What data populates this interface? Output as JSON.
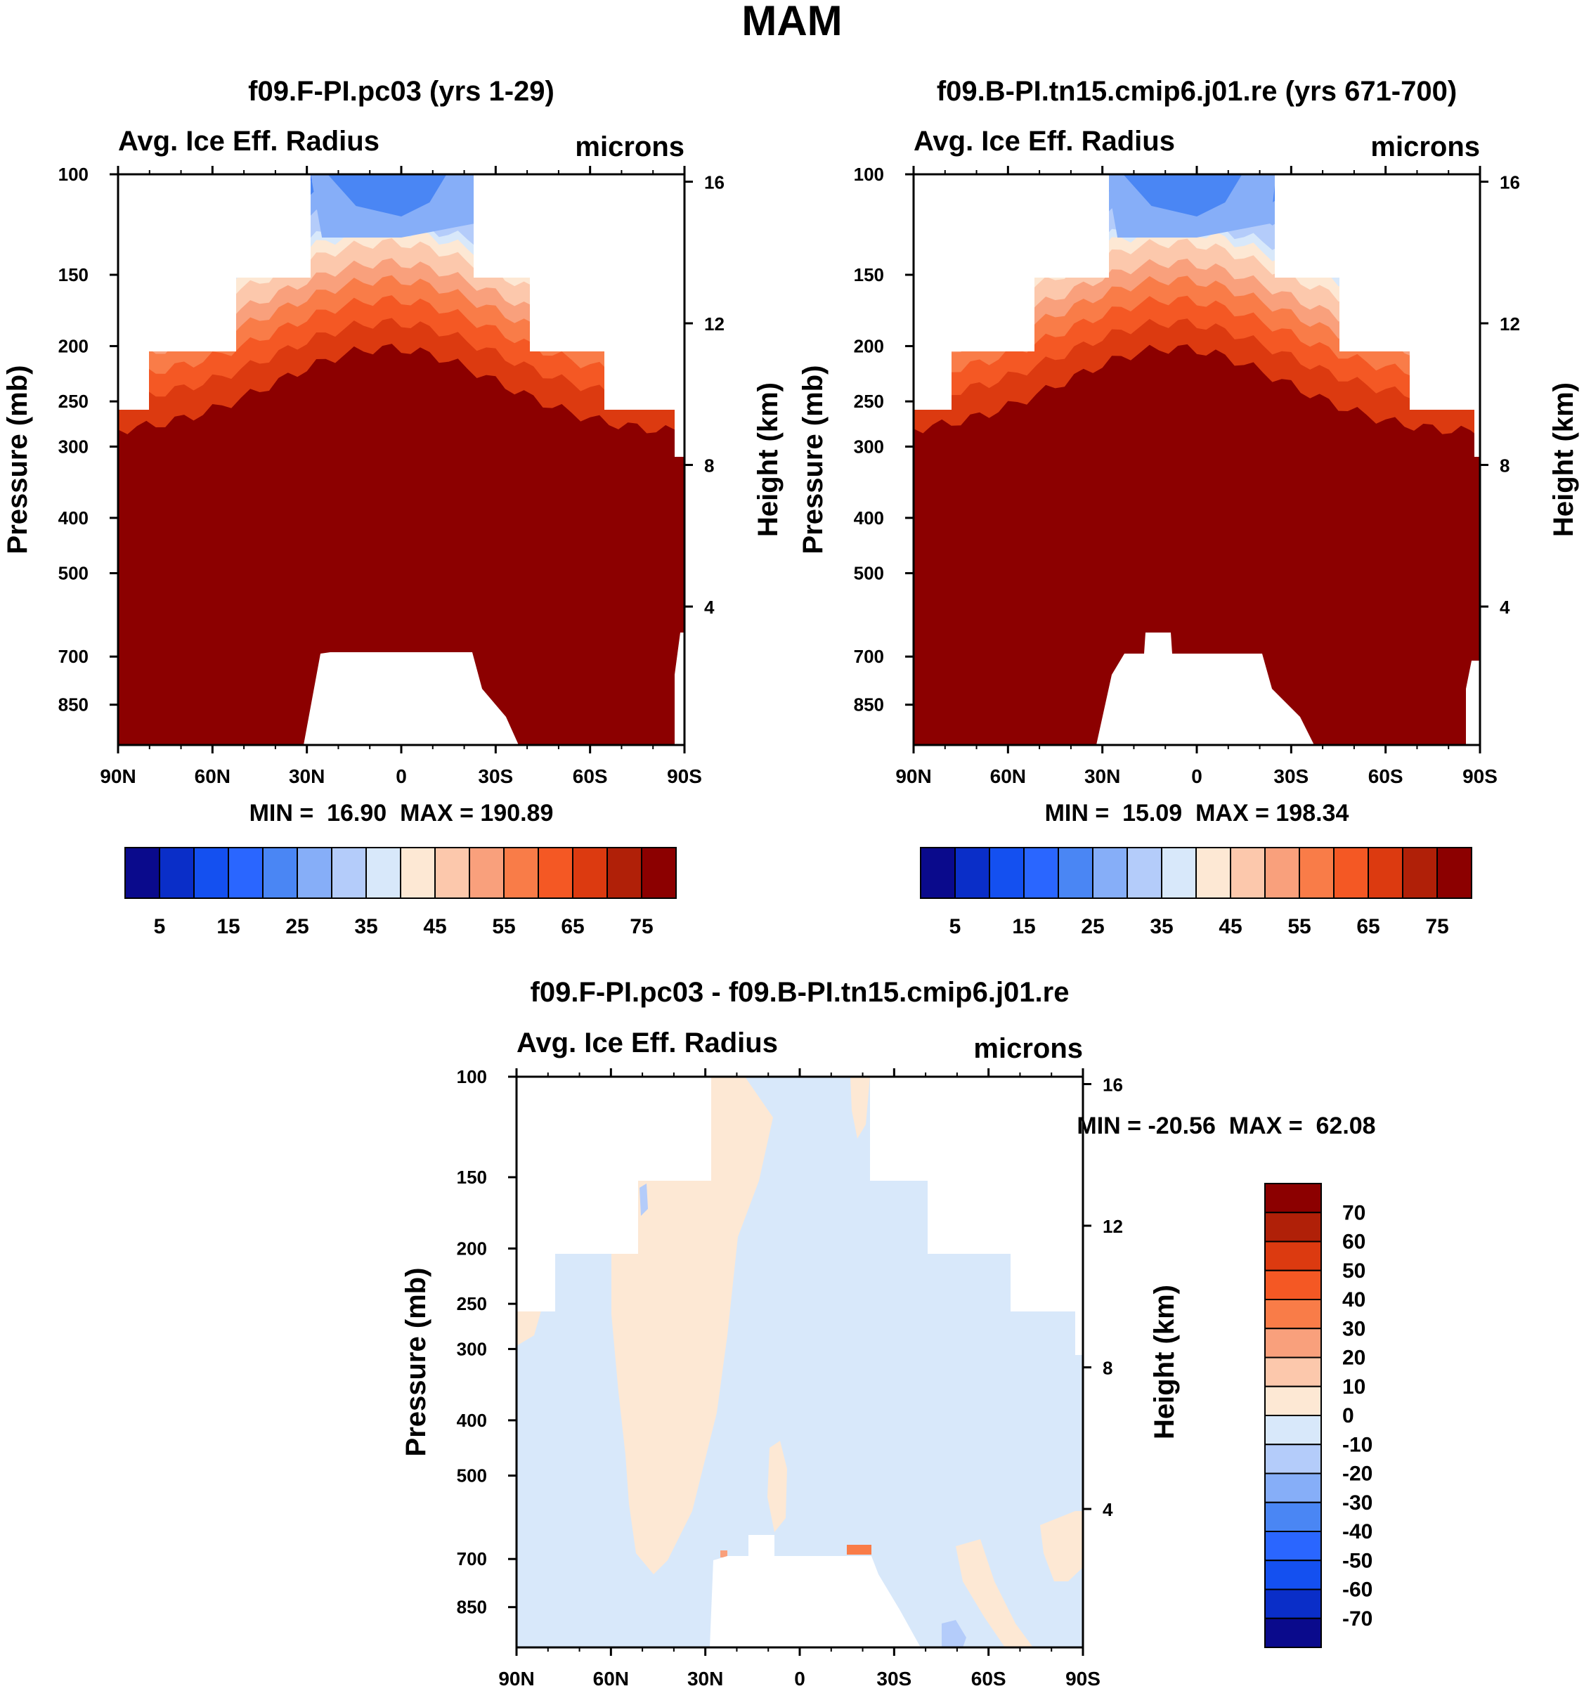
{
  "chart_data": [
    {
      "type": "heatmap",
      "title": "f09.F-PI.pc03 (yrs 1-29)",
      "left_label": "Avg. Ice Eff. Radius",
      "right_label": "microns",
      "ylabel": "Pressure (mb)",
      "y2label": "Height (km)",
      "x_ticks": [
        "90N",
        "60N",
        "30N",
        "0",
        "30S",
        "60S",
        "90S"
      ],
      "y_ticks": [
        "100",
        "150",
        "200",
        "250",
        "300",
        "400",
        "500",
        "700",
        "850"
      ],
      "y2_ticks": [
        "16",
        "12",
        "8",
        "4"
      ],
      "stats": "MIN =  16.90  MAX = 190.89",
      "x_range": [
        "90N",
        "90S"
      ],
      "y_range_mb": [
        100,
        1000
      ],
      "colorbar_labels": [
        "5",
        "15",
        "25",
        "35",
        "45",
        "55",
        "65",
        "75"
      ]
    },
    {
      "type": "heatmap",
      "title": "f09.B-PI.tn15.cmip6.j01.re (yrs 671-700)",
      "left_label": "Avg. Ice Eff. Radius",
      "right_label": "microns",
      "ylabel": "Pressure (mb)",
      "y2label": "Height (km)",
      "x_ticks": [
        "90N",
        "60N",
        "30N",
        "0",
        "30S",
        "60S",
        "90S"
      ],
      "y_ticks": [
        "100",
        "150",
        "200",
        "250",
        "300",
        "400",
        "500",
        "700",
        "850"
      ],
      "y2_ticks": [
        "16",
        "12",
        "8",
        "4"
      ],
      "stats": "MIN =  15.09  MAX = 198.34",
      "x_range": [
        "90N",
        "90S"
      ],
      "y_range_mb": [
        100,
        1000
      ],
      "colorbar_labels": [
        "5",
        "15",
        "25",
        "35",
        "45",
        "55",
        "65",
        "75"
      ]
    },
    {
      "type": "heatmap",
      "title": "f09.F-PI.pc03 - f09.B-PI.tn15.cmip6.j01.re",
      "left_label": "Avg. Ice Eff. Radius",
      "right_label": "microns",
      "ylabel": "Pressure (mb)",
      "y2label": "Height (km)",
      "x_ticks": [
        "90N",
        "60N",
        "30N",
        "0",
        "30S",
        "60S",
        "90S"
      ],
      "y_ticks": [
        "100",
        "150",
        "200",
        "250",
        "300",
        "400",
        "500",
        "700",
        "850"
      ],
      "y2_ticks": [
        "16",
        "12",
        "8",
        "4"
      ],
      "stats": "MIN = -20.56  MAX =  62.08",
      "x_range": [
        "90N",
        "90S"
      ],
      "y_range_mb": [
        100,
        1000
      ],
      "colorbar_labels": [
        "70",
        "60",
        "50",
        "40",
        "30",
        "20",
        "10",
        "0",
        "-10",
        "-20",
        "-30",
        "-40",
        "-50",
        "-60",
        "-70"
      ]
    }
  ],
  "figure": {
    "title": "MAM"
  },
  "colors": {
    "palette_abs": [
      "#0a0a8c",
      "#0a2ec8",
      "#1450f0",
      "#2a66ff",
      "#4a86f4",
      "#86aef8",
      "#b4ccfa",
      "#d8e8fa",
      "#fde8d4",
      "#fcc8ac",
      "#f9a07c",
      "#f97c48",
      "#f45824",
      "#dc3a10",
      "#b02008",
      "#8c0000"
    ],
    "palette_diff": [
      "#8c0000",
      "#b02008",
      "#dc3a10",
      "#f45824",
      "#f97c48",
      "#f9a07c",
      "#fcc8ac",
      "#fde8d4",
      "#d8e8fa",
      "#b4ccfa",
      "#86aef8",
      "#4a86f4",
      "#2a66ff",
      "#1450f0",
      "#0a2ec8",
      "#0a0a8c"
    ]
  }
}
